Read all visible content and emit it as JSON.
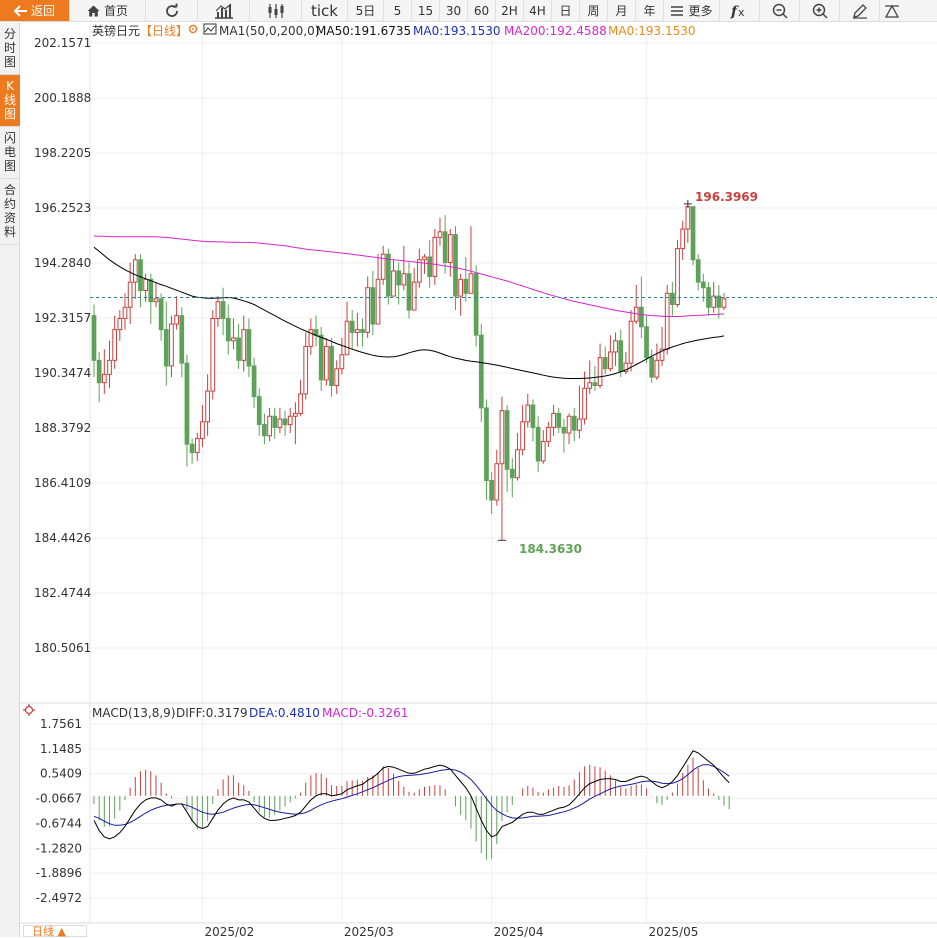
{
  "toolbar": {
    "back_label": "返回",
    "home_label": "首页",
    "tick_label": "tick",
    "periods": [
      "5日",
      "5",
      "15",
      "30",
      "60",
      "2H",
      "4H",
      "日",
      "周",
      "月",
      "年"
    ],
    "more_label": "更多"
  },
  "sidebar": {
    "tabs": [
      {
        "label": [
          "分",
          "时",
          "图"
        ],
        "active": false
      },
      {
        "label": [
          "K",
          "线",
          "图"
        ],
        "active": true
      },
      {
        "label": [
          "闪",
          "电",
          "图"
        ],
        "active": false
      },
      {
        "label": [
          "合",
          "约",
          "资",
          "料"
        ],
        "active": false
      }
    ]
  },
  "colors": {
    "up": "#c9413e",
    "down": "#5ea25a",
    "ma50": "#000000",
    "ma200": "#d626cf",
    "ma0": "#ee8a17",
    "diff": "#000000",
    "dea": "#1a1a9e",
    "accent": "#ee7a1f"
  },
  "price_panel": {
    "symbol": "英镑日元",
    "period_tag": "【日线】",
    "indicator": "MA1(50,0,200,0)",
    "ma50_label": "MA50:191.6735",
    "ma0_label_1": "MA0:193.1530",
    "ma200_label": "MA200:192.4588",
    "ma0_label_2": "MA0:193.1530",
    "y_ticks": [
      "202.1571",
      "200.1888",
      "198.2205",
      "196.2523",
      "194.2840",
      "192.3157",
      "190.3474",
      "188.3792",
      "186.4109",
      "184.4426",
      "182.4744",
      "180.5061"
    ],
    "y_tick_values": [
      202.1571,
      200.1888,
      198.2205,
      196.2523,
      194.284,
      192.3157,
      190.3474,
      188.3792,
      186.4109,
      184.4426,
      182.4744,
      180.5061
    ],
    "high_label": "196.3969",
    "low_label": "184.3630",
    "current_level": 193.05,
    "candles": [
      [
        192.4,
        190.8,
        192.8,
        190.2
      ],
      [
        190.8,
        190.0,
        191.1,
        189.3
      ],
      [
        190.0,
        190.3,
        191.2,
        189.6
      ],
      [
        190.3,
        190.8,
        191.5,
        189.8
      ],
      [
        190.8,
        191.9,
        192.4,
        190.5
      ],
      [
        191.9,
        192.3,
        192.6,
        191.5
      ],
      [
        192.3,
        192.7,
        193.2,
        191.9
      ],
      [
        192.7,
        193.6,
        194.3,
        192.1
      ],
      [
        193.6,
        194.4,
        194.6,
        193.0
      ],
      [
        194.4,
        193.3,
        194.6,
        192.7
      ],
      [
        193.3,
        193.7,
        193.9,
        192.9
      ],
      [
        193.7,
        192.9,
        193.9,
        192.1
      ],
      [
        192.9,
        193.0,
        193.6,
        192.7
      ],
      [
        193.0,
        191.9,
        193.2,
        191.5
      ],
      [
        191.9,
        190.6,
        192.9,
        189.9
      ],
      [
        190.6,
        192.1,
        192.4,
        190.2
      ],
      [
        192.1,
        192.4,
        193.1,
        191.9
      ],
      [
        192.4,
        190.7,
        192.7,
        190.2
      ],
      [
        190.7,
        187.8,
        191.0,
        187.0
      ],
      [
        187.8,
        187.5,
        188.0,
        187.1
      ],
      [
        187.5,
        188.0,
        188.2,
        187.2
      ],
      [
        188.0,
        188.6,
        189.2,
        187.7
      ],
      [
        188.6,
        189.7,
        190.3,
        188.1
      ],
      [
        189.7,
        192.3,
        192.6,
        189.4
      ],
      [
        192.3,
        192.9,
        193.1,
        192.0
      ],
      [
        192.9,
        192.3,
        193.4,
        191.7
      ],
      [
        192.3,
        191.5,
        192.8,
        191.0
      ],
      [
        191.5,
        191.6,
        192.3,
        191.2
      ],
      [
        191.6,
        190.8,
        192.1,
        190.5
      ],
      [
        190.8,
        191.9,
        192.4,
        190.4
      ],
      [
        191.9,
        190.6,
        192.3,
        190.2
      ],
      [
        190.6,
        189.5,
        190.9,
        189.1
      ],
      [
        189.5,
        188.5,
        189.8,
        188.1
      ],
      [
        188.5,
        188.1,
        188.9,
        187.8
      ],
      [
        188.1,
        188.8,
        189.1,
        187.9
      ],
      [
        188.8,
        188.4,
        189.1,
        188.0
      ],
      [
        188.4,
        188.7,
        189.1,
        188.2
      ],
      [
        188.7,
        188.5,
        189.0,
        188.1
      ],
      [
        188.5,
        188.8,
        189.1,
        188.2
      ],
      [
        188.8,
        188.9,
        189.3,
        187.8
      ],
      [
        188.9,
        189.6,
        190.1,
        188.8
      ],
      [
        189.6,
        191.3,
        191.8,
        189.4
      ],
      [
        191.3,
        191.9,
        192.3,
        191.0
      ],
      [
        191.9,
        191.7,
        192.4,
        191.3
      ],
      [
        191.7,
        190.1,
        192.0,
        189.7
      ],
      [
        190.1,
        191.3,
        191.6,
        189.9
      ],
      [
        191.3,
        189.9,
        191.6,
        189.5
      ],
      [
        189.9,
        190.5,
        190.8,
        189.6
      ],
      [
        190.5,
        191.0,
        191.6,
        190.3
      ],
      [
        191.0,
        192.2,
        192.9,
        191.8
      ],
      [
        192.2,
        191.8,
        192.6,
        191.2
      ],
      [
        191.8,
        191.9,
        192.5,
        191.3
      ],
      [
        191.9,
        191.8,
        192.3,
        191.3
      ],
      [
        191.8,
        193.4,
        193.8,
        191.6
      ],
      [
        193.4,
        192.1,
        194.0,
        191.7
      ],
      [
        192.1,
        193.7,
        194.6,
        193.3
      ],
      [
        193.7,
        194.6,
        194.9,
        193.5
      ],
      [
        194.6,
        193.1,
        194.8,
        192.8
      ],
      [
        193.1,
        194.0,
        194.4,
        193.2
      ],
      [
        194.0,
        193.5,
        194.3,
        192.8
      ],
      [
        193.5,
        193.9,
        194.9,
        193.3
      ],
      [
        193.9,
        192.6,
        194.3,
        192.3
      ],
      [
        192.6,
        193.6,
        194.1,
        193.1
      ],
      [
        193.6,
        194.4,
        194.8,
        193.4
      ],
      [
        194.4,
        194.5,
        194.6,
        193.9
      ],
      [
        194.5,
        193.8,
        195.1,
        193.4
      ],
      [
        193.8,
        195.2,
        195.5,
        193.5
      ],
      [
        195.2,
        195.4,
        195.9,
        194.9
      ],
      [
        195.4,
        194.3,
        196.0,
        193.9
      ],
      [
        194.3,
        195.3,
        195.5,
        193.8
      ],
      [
        195.3,
        193.1,
        195.6,
        192.6
      ],
      [
        193.1,
        193.7,
        193.9,
        192.4
      ],
      [
        193.7,
        193.2,
        194.5,
        192.9
      ],
      [
        193.2,
        193.9,
        195.6,
        193.6
      ],
      [
        193.9,
        191.7,
        194.2,
        191.3
      ],
      [
        191.7,
        189.1,
        192.1,
        188.6
      ],
      [
        189.1,
        186.5,
        189.4,
        185.8
      ],
      [
        186.5,
        185.8,
        186.8,
        185.3
      ],
      [
        185.8,
        187.1,
        187.6,
        185.6
      ],
      [
        187.1,
        189.0,
        189.5,
        184.36
      ],
      [
        189.0,
        186.9,
        189.2,
        186.1
      ],
      [
        186.9,
        186.6,
        187.3,
        185.9
      ],
      [
        186.6,
        187.6,
        188.2,
        186.5
      ],
      [
        187.6,
        188.6,
        189.2,
        187.4
      ],
      [
        188.6,
        189.2,
        189.6,
        188.4
      ],
      [
        189.2,
        188.4,
        189.4,
        187.9
      ],
      [
        188.4,
        187.2,
        188.8,
        186.8
      ],
      [
        187.2,
        187.9,
        188.3,
        187.1
      ],
      [
        187.9,
        188.4,
        188.6,
        187.7
      ],
      [
        188.4,
        188.9,
        189.2,
        188.1
      ],
      [
        188.9,
        188.4,
        189.1,
        188.2
      ],
      [
        188.4,
        188.2,
        188.7,
        187.5
      ],
      [
        188.2,
        188.8,
        188.9,
        187.8
      ],
      [
        188.8,
        188.3,
        189.1,
        187.9
      ],
      [
        188.3,
        188.7,
        189.9,
        188.0
      ],
      [
        188.7,
        189.8,
        190.4,
        188.5
      ],
      [
        189.8,
        190.0,
        190.8,
        189.6
      ],
      [
        190.0,
        189.9,
        190.6,
        189.7
      ],
      [
        189.9,
        190.9,
        191.4,
        189.8
      ],
      [
        190.9,
        190.5,
        191.3,
        190.3
      ],
      [
        190.5,
        191.1,
        191.7,
        190.4
      ],
      [
        191.1,
        191.5,
        191.8,
        190.6
      ],
      [
        191.5,
        190.4,
        191.9,
        190.2
      ],
      [
        190.4,
        190.7,
        191.1,
        190.3
      ],
      [
        190.7,
        192.2,
        192.6,
        190.4
      ],
      [
        192.2,
        192.7,
        193.5,
        192.1
      ],
      [
        192.7,
        192.0,
        193.8,
        191.6
      ],
      [
        192.0,
        190.9,
        192.4,
        190.7
      ],
      [
        190.9,
        190.2,
        191.2,
        190.0
      ],
      [
        190.2,
        190.8,
        191.4,
        190.1
      ],
      [
        190.8,
        191.2,
        192.0,
        190.6
      ],
      [
        191.2,
        193.2,
        193.5,
        191.0
      ],
      [
        193.2,
        192.8,
        193.6,
        192.4
      ],
      [
        192.8,
        194.8,
        195.1,
        192.7
      ],
      [
        194.8,
        195.5,
        195.8,
        194.4
      ],
      [
        195.5,
        196.3,
        196.4,
        195.0
      ],
      [
        196.3,
        194.4,
        196.3,
        194.2
      ],
      [
        194.4,
        193.6,
        194.6,
        193.3
      ],
      [
        193.6,
        193.4,
        193.9,
        192.9
      ],
      [
        193.4,
        192.7,
        193.6,
        192.4
      ],
      [
        192.7,
        193.1,
        193.6,
        192.5
      ],
      [
        193.1,
        192.7,
        193.5,
        192.3
      ],
      [
        192.7,
        193.0,
        193.2,
        192.6
      ]
    ],
    "ma50": [
      194.85,
      194.7,
      194.55,
      194.4,
      194.27,
      194.15,
      194.04,
      193.95,
      193.86,
      193.79,
      193.72,
      193.65,
      193.58,
      193.51,
      193.45,
      193.38,
      193.31,
      193.24,
      193.17,
      193.1,
      193.06,
      193.04,
      193.02,
      193.02,
      193.03,
      193.04,
      193.05,
      193.03,
      192.98,
      192.93,
      192.87,
      192.8,
      192.7,
      192.6,
      192.5,
      192.4,
      192.3,
      192.2,
      192.11,
      192.02,
      191.93,
      191.85,
      191.77,
      191.69,
      191.62,
      191.55,
      191.48,
      191.4,
      191.33,
      191.27,
      191.2,
      191.14,
      191.08,
      191.03,
      190.98,
      190.95,
      190.93,
      190.92,
      190.93,
      190.96,
      191.01,
      191.07,
      191.12,
      191.16,
      191.18,
      191.16,
      191.12,
      191.06,
      190.99,
      190.93,
      190.88,
      190.84,
      190.8,
      190.77,
      190.75,
      190.72,
      190.69,
      190.66,
      190.63,
      190.59,
      190.55,
      190.51,
      190.47,
      190.43,
      190.39,
      190.35,
      190.31,
      190.27,
      190.23,
      190.2,
      190.18,
      190.16,
      190.15,
      190.15,
      190.15,
      190.16,
      190.17,
      190.19,
      190.21,
      190.24,
      190.28,
      190.33,
      190.39,
      190.46,
      190.55,
      190.65,
      190.75,
      190.85,
      190.95,
      191.04,
      191.13,
      191.21,
      191.28,
      191.34,
      191.4,
      191.45,
      191.49,
      191.53,
      191.56,
      191.59,
      191.62,
      191.64,
      191.6735
    ],
    "ma200": [
      195.25,
      195.24,
      195.24,
      195.23,
      195.23,
      195.22,
      195.22,
      195.22,
      195.22,
      195.22,
      195.22,
      195.22,
      195.22,
      195.21,
      195.2,
      195.18,
      195.16,
      195.14,
      195.12,
      195.1,
      195.08,
      195.06,
      195.05,
      195.05,
      195.04,
      195.04,
      195.03,
      195.03,
      195.02,
      195.02,
      195.02,
      195.01,
      195.0,
      194.98,
      194.96,
      194.94,
      194.92,
      194.9,
      194.87,
      194.84,
      194.81,
      194.78,
      194.76,
      194.74,
      194.72,
      194.7,
      194.68,
      194.66,
      194.64,
      194.62,
      194.6,
      194.57,
      194.55,
      194.52,
      194.5,
      194.47,
      194.45,
      194.42,
      194.4,
      194.38,
      194.36,
      194.34,
      194.32,
      194.3,
      194.28,
      194.26,
      194.24,
      194.21,
      194.18,
      194.15,
      194.12,
      194.08,
      194.04,
      193.99,
      193.94,
      193.89,
      193.84,
      193.79,
      193.74,
      193.69,
      193.64,
      193.58,
      193.52,
      193.46,
      193.4,
      193.34,
      193.28,
      193.22,
      193.16,
      193.11,
      193.06,
      193.01,
      192.96,
      192.91,
      192.87,
      192.83,
      192.79,
      192.75,
      192.71,
      192.67,
      192.63,
      192.59,
      192.56,
      192.53,
      192.5,
      192.47,
      192.44,
      192.42,
      192.4,
      192.39,
      192.38,
      192.37,
      192.37,
      192.37,
      192.38,
      192.39,
      192.4,
      192.41,
      192.42,
      192.43,
      192.44,
      192.45,
      192.4588
    ]
  },
  "macd_panel": {
    "title": "MACD(13,8,9)",
    "diff_label": "DIFF:0.3179",
    "dea_label": "DEA:0.4810",
    "macd_label": "MACD:-0.3261",
    "y_ticks": [
      "1.7561",
      "1.1485",
      "0.5409",
      "-0.0667",
      "-0.6744",
      "-1.2820",
      "-1.8896",
      "-2.4972"
    ],
    "y_tick_values": [
      1.7561,
      1.1485,
      0.5409,
      -0.0667,
      -0.6744,
      -1.282,
      -1.8896,
      -2.4972
    ],
    "diff": [
      -0.6,
      -0.85,
      -1.0,
      -1.05,
      -1.0,
      -0.9,
      -0.75,
      -0.55,
      -0.35,
      -0.2,
      -0.1,
      -0.05,
      -0.05,
      -0.1,
      -0.2,
      -0.25,
      -0.2,
      -0.2,
      -0.4,
      -0.6,
      -0.75,
      -0.8,
      -0.75,
      -0.55,
      -0.35,
      -0.2,
      -0.1,
      -0.05,
      -0.1,
      -0.1,
      -0.15,
      -0.3,
      -0.45,
      -0.55,
      -0.6,
      -0.6,
      -0.58,
      -0.55,
      -0.52,
      -0.48,
      -0.4,
      -0.25,
      -0.1,
      0.0,
      0.05,
      0.05,
      0.0,
      0.02,
      0.05,
      0.15,
      0.2,
      0.25,
      0.28,
      0.38,
      0.45,
      0.55,
      0.68,
      0.72,
      0.7,
      0.65,
      0.6,
      0.55,
      0.55,
      0.6,
      0.65,
      0.68,
      0.72,
      0.75,
      0.72,
      0.65,
      0.5,
      0.35,
      0.2,
      0.0,
      -0.3,
      -0.6,
      -0.85,
      -1.0,
      -0.95,
      -0.75,
      -0.7,
      -0.65,
      -0.55,
      -0.45,
      -0.4,
      -0.4,
      -0.45,
      -0.45,
      -0.4,
      -0.35,
      -0.3,
      -0.28,
      -0.22,
      -0.1,
      0.05,
      0.2,
      0.3,
      0.35,
      0.4,
      0.42,
      0.42,
      0.4,
      0.35,
      0.35,
      0.4,
      0.45,
      0.48,
      0.45,
      0.35,
      0.25,
      0.2,
      0.25,
      0.35,
      0.5,
      0.7,
      0.9,
      1.1,
      1.05,
      0.95,
      0.85,
      0.75,
      0.6,
      0.45,
      0.3179
    ],
    "dea": [
      -0.5,
      -0.55,
      -0.62,
      -0.68,
      -0.72,
      -0.72,
      -0.7,
      -0.65,
      -0.58,
      -0.5,
      -0.42,
      -0.35,
      -0.3,
      -0.26,
      -0.23,
      -0.22,
      -0.2,
      -0.2,
      -0.23,
      -0.28,
      -0.34,
      -0.4,
      -0.44,
      -0.45,
      -0.43,
      -0.4,
      -0.35,
      -0.3,
      -0.26,
      -0.23,
      -0.21,
      -0.22,
      -0.25,
      -0.29,
      -0.33,
      -0.37,
      -0.4,
      -0.42,
      -0.44,
      -0.45,
      -0.44,
      -0.41,
      -0.35,
      -0.28,
      -0.22,
      -0.17,
      -0.13,
      -0.1,
      -0.07,
      -0.03,
      0.01,
      0.05,
      0.1,
      0.15,
      0.2,
      0.26,
      0.32,
      0.38,
      0.43,
      0.47,
      0.49,
      0.5,
      0.51,
      0.52,
      0.54,
      0.56,
      0.59,
      0.62,
      0.64,
      0.65,
      0.63,
      0.58,
      0.5,
      0.4,
      0.26,
      0.1,
      -0.07,
      -0.23,
      -0.36,
      -0.44,
      -0.5,
      -0.54,
      -0.55,
      -0.54,
      -0.52,
      -0.5,
      -0.5,
      -0.49,
      -0.48,
      -0.45,
      -0.42,
      -0.39,
      -0.35,
      -0.3,
      -0.24,
      -0.16,
      -0.08,
      -0.01,
      0.05,
      0.11,
      0.17,
      0.21,
      0.24,
      0.26,
      0.28,
      0.31,
      0.34,
      0.36,
      0.36,
      0.34,
      0.31,
      0.3,
      0.31,
      0.35,
      0.42,
      0.52,
      0.63,
      0.71,
      0.76,
      0.76,
      0.72,
      0.65,
      0.57,
      0.481
    ]
  },
  "x_axis": {
    "labels": [
      "2025/02",
      "2025/03",
      "2025/04",
      "2025/05"
    ],
    "label_indices": [
      21,
      48,
      77,
      107
    ],
    "period_button": "日线 ▲"
  }
}
